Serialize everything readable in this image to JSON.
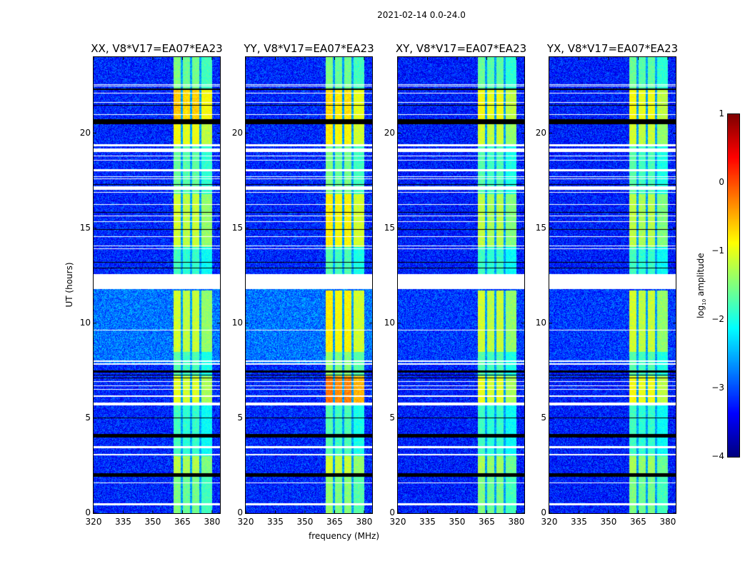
{
  "suptitle": "2021-02-14 0.0-24.0",
  "chart_data": {
    "type": "heatmap",
    "xlabel": "frequency (MHz)",
    "ylabel": "UT (hours)",
    "xlim": [
      320,
      384
    ],
    "ylim": [
      0,
      24
    ],
    "xticks": [
      320,
      335,
      350,
      365,
      380
    ],
    "yticks": [
      0,
      5,
      10,
      15,
      20
    ],
    "colorbar": {
      "label_main": "log",
      "label_sub": "10",
      "label_rest": " amplitude",
      "range": [
        -4,
        1
      ],
      "ticks": [
        1,
        0,
        -1,
        -2,
        -3,
        -4
      ],
      "colormap": "jet"
    },
    "band": {
      "start_mhz": 360.5,
      "end_mhz": 380,
      "subband_gaps_mhz": [
        364.7,
        369.3,
        374.0
      ],
      "subband_offsets": [
        0.1,
        0.0,
        0.05,
        -0.2
      ]
    },
    "white_gaps_hours": [
      [
        0.41,
        0.52
      ],
      [
        1.56,
        1.62
      ],
      [
        3.05,
        3.1
      ],
      [
        3.4,
        3.52
      ],
      [
        5.68,
        5.82
      ],
      [
        6.13,
        6.18
      ],
      [
        6.5,
        6.54
      ],
      [
        6.7,
        6.74
      ],
      [
        6.9,
        6.94
      ],
      [
        7.83,
        7.87
      ],
      [
        7.98,
        8.03
      ],
      [
        9.62,
        9.66
      ],
      [
        11.78,
        12.6
      ],
      [
        13.9,
        13.95
      ],
      [
        14.05,
        14.1
      ],
      [
        14.54,
        14.58
      ],
      [
        15.33,
        15.38
      ],
      [
        15.63,
        15.67
      ],
      [
        16.23,
        16.28
      ],
      [
        16.88,
        16.92
      ],
      [
        17.0,
        17.2
      ],
      [
        17.58,
        17.62
      ],
      [
        17.68,
        17.72
      ],
      [
        18.0,
        18.1
      ],
      [
        18.55,
        18.6
      ],
      [
        18.78,
        18.82
      ],
      [
        19.0,
        19.18
      ],
      [
        19.3,
        19.42
      ],
      [
        20.95,
        21.0
      ],
      [
        21.58,
        21.62
      ],
      [
        22.08,
        22.14
      ],
      [
        22.47,
        22.5
      ],
      [
        22.54,
        22.57
      ]
    ],
    "flagged_hours": [
      [
        1.9,
        2.1
      ],
      [
        4.0,
        4.17
      ],
      [
        5.0,
        5.05
      ],
      [
        7.1,
        7.14
      ],
      [
        7.25,
        7.29
      ],
      [
        7.4,
        7.5
      ],
      [
        12.88,
        12.93
      ],
      [
        13.18,
        13.22
      ],
      [
        14.91,
        14.95
      ],
      [
        15.81,
        15.85
      ],
      [
        17.28,
        17.32
      ],
      [
        20.48,
        20.72
      ],
      [
        21.44,
        21.48
      ],
      [
        22.28,
        22.33
      ]
    ],
    "panels": [
      {
        "title": "XX, V8*V17=EA07*EA23",
        "background": [
          [
            0,
            7.8,
            -3.2
          ],
          [
            7.8,
            11.8,
            -2.8
          ],
          [
            11.8,
            24,
            -3.2
          ]
        ],
        "band_levels": [
          [
            0,
            2,
            -1.6
          ],
          [
            2,
            3,
            -1.3
          ],
          [
            3,
            5.8,
            -1.9
          ],
          [
            5.8,
            7.2,
            -1.1
          ],
          [
            7.2,
            8.5,
            -1.8
          ],
          [
            8.5,
            11.7,
            -1.2
          ],
          [
            12.6,
            14,
            -1.9
          ],
          [
            14,
            16.8,
            -1.2
          ],
          [
            16.8,
            19.3,
            -1.7
          ],
          [
            19.3,
            20.5,
            -1.0
          ],
          [
            20.7,
            22.3,
            -0.7
          ],
          [
            22.3,
            24,
            -1.6
          ]
        ]
      },
      {
        "title": "YY, V8*V17=EA07*EA23",
        "background": [
          [
            0,
            7.8,
            -3.2
          ],
          [
            7.8,
            11.8,
            -2.8
          ],
          [
            11.8,
            24,
            -3.2
          ]
        ],
        "band_levels": [
          [
            0,
            2,
            -1.5
          ],
          [
            2,
            3,
            -1.2
          ],
          [
            3,
            5.8,
            -1.8
          ],
          [
            5.8,
            7.2,
            -0.3
          ],
          [
            7.2,
            8.5,
            -1.5
          ],
          [
            8.5,
            11.7,
            -0.9
          ],
          [
            12.6,
            14,
            -1.8
          ],
          [
            14,
            16.8,
            -0.9
          ],
          [
            16.8,
            19.3,
            -1.6
          ],
          [
            19.3,
            20.5,
            -0.9
          ],
          [
            20.7,
            22.3,
            -0.8
          ],
          [
            22.3,
            24,
            -1.6
          ]
        ]
      },
      {
        "title": "XY, V8*V17=EA07*EA23",
        "background": [
          [
            0,
            7.8,
            -3.25
          ],
          [
            7.8,
            11.8,
            -3.1
          ],
          [
            11.8,
            24,
            -3.25
          ]
        ],
        "band_levels": [
          [
            0,
            2,
            -1.6
          ],
          [
            2,
            3,
            -1.4
          ],
          [
            3,
            5.8,
            -1.9
          ],
          [
            5.8,
            7.2,
            -1.1
          ],
          [
            7.2,
            8.5,
            -1.8
          ],
          [
            8.5,
            11.7,
            -1.2
          ],
          [
            12.6,
            14,
            -1.9
          ],
          [
            14,
            16.8,
            -1.3
          ],
          [
            16.8,
            19.3,
            -1.8
          ],
          [
            19.3,
            20.5,
            -1.2
          ],
          [
            20.7,
            22.3,
            -1.0
          ],
          [
            22.3,
            24,
            -1.7
          ]
        ]
      },
      {
        "title": "YX, V8*V17=EA07*EA23",
        "background": [
          [
            0,
            7.8,
            -3.25
          ],
          [
            7.8,
            11.8,
            -3.1
          ],
          [
            11.8,
            24,
            -3.25
          ]
        ],
        "band_levels": [
          [
            0,
            2,
            -1.6
          ],
          [
            2,
            3,
            -1.4
          ],
          [
            3,
            5.8,
            -1.9
          ],
          [
            5.8,
            7.2,
            -1.0
          ],
          [
            7.2,
            8.5,
            -1.8
          ],
          [
            8.5,
            11.7,
            -1.2
          ],
          [
            12.6,
            14,
            -1.9
          ],
          [
            14,
            16.8,
            -1.3
          ],
          [
            16.8,
            19.3,
            -1.8
          ],
          [
            19.3,
            20.5,
            -1.2
          ],
          [
            20.7,
            22.3,
            -1.0
          ],
          [
            22.3,
            24,
            -1.7
          ]
        ]
      }
    ]
  }
}
